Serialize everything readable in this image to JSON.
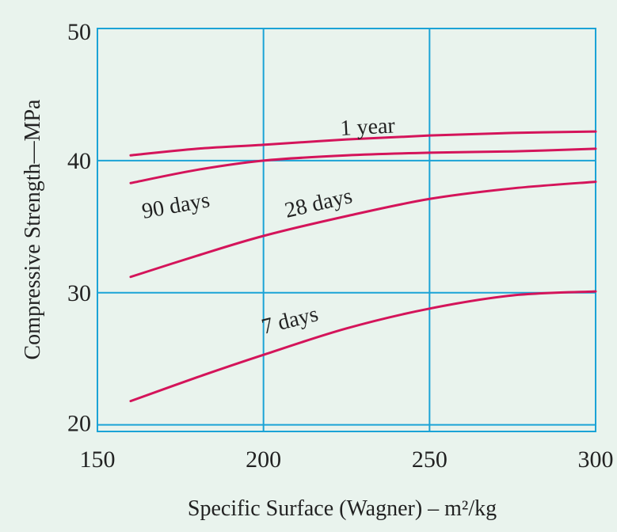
{
  "chart_data": {
    "type": "line",
    "xlabel": "Specific Surface (Wagner) – m²/kg",
    "ylabel": "Compressive Strength—MPa",
    "xlim": [
      150,
      300
    ],
    "ylim": [
      19.5,
      50
    ],
    "x_ticks": [
      "150",
      "200",
      "250",
      "300"
    ],
    "y_ticks": [
      "20",
      "30",
      "40",
      "50"
    ],
    "y_tick_values": [
      20,
      30,
      40,
      50
    ],
    "grid": true,
    "series": [
      {
        "name": "1 year",
        "color": "#d4145a",
        "x": [
          160,
          180,
          200,
          225,
          250,
          275,
          300
        ],
        "y": [
          40.4,
          40.9,
          41.2,
          41.6,
          41.9,
          42.1,
          42.2
        ]
      },
      {
        "name": "90 days",
        "color": "#d4145a",
        "x": [
          160,
          180,
          200,
          225,
          250,
          275,
          300
        ],
        "y": [
          38.3,
          39.3,
          40.0,
          40.4,
          40.6,
          40.7,
          40.9
        ]
      },
      {
        "name": "28 days",
        "color": "#d4145a",
        "x": [
          160,
          180,
          200,
          225,
          250,
          275,
          300
        ],
        "y": [
          31.2,
          32.8,
          34.3,
          35.8,
          37.1,
          37.9,
          38.4
        ]
      },
      {
        "name": "7 days",
        "color": "#d4145a",
        "x": [
          160,
          180,
          200,
          225,
          250,
          275,
          300
        ],
        "y": [
          21.8,
          23.6,
          25.3,
          27.3,
          28.8,
          29.8,
          30.1
        ]
      }
    ],
    "colors": {
      "grid": "#1ba3d6",
      "curve": "#d4145a",
      "background": "#e9f3ed"
    }
  }
}
